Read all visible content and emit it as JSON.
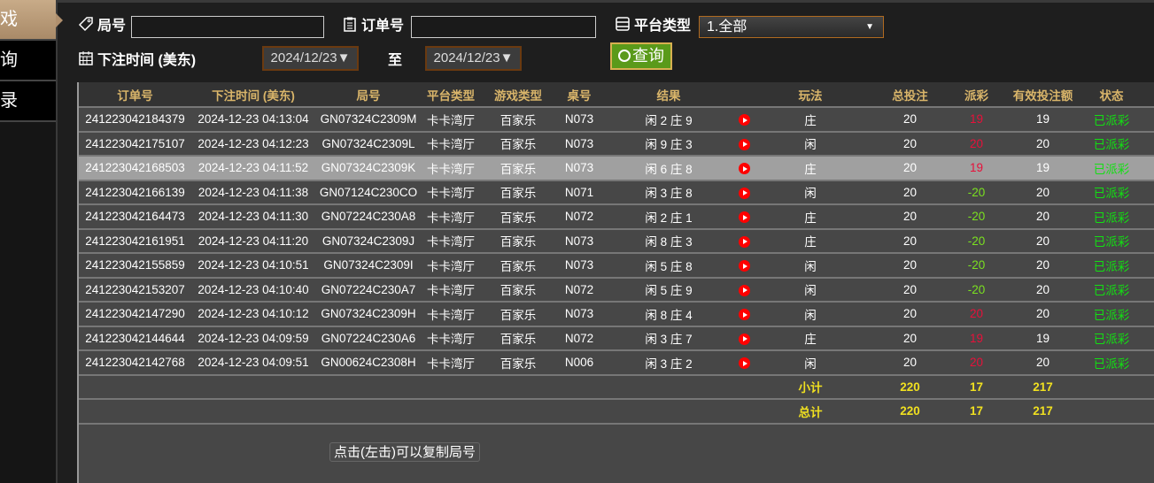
{
  "sidebar": {
    "items": [
      {
        "label": "戏",
        "active": true
      },
      {
        "label": "询"
      },
      {
        "label": "录"
      }
    ]
  },
  "filters": {
    "round_label": "局号",
    "round_value": "",
    "order_label": "订单号",
    "order_value": "",
    "platform_label": "平台类型",
    "platform_value": "1.全部",
    "time_label": "下注时间 (美东)",
    "date_from": "2024/12/23",
    "to_label": "至",
    "date_to": "2024/12/23",
    "query_label": "查询"
  },
  "tooltip": "点击(左击)可以复制局号",
  "table": {
    "headers": [
      "订单号",
      "下注时间 (美东)",
      "局号",
      "平台类型",
      "游戏类型",
      "桌号",
      "结果",
      "",
      "玩法",
      "总投注",
      "派彩",
      "有效投注额",
      "状态"
    ],
    "rows": [
      [
        "241223042184379",
        "2024-12-23 04:13:04",
        "GN07324C2309M",
        "卡卡湾厅",
        "百家乐",
        "N073",
        "闲 2 庄 9",
        "庄",
        "20",
        "19",
        "19",
        "已派彩"
      ],
      [
        "241223042175107",
        "2024-12-23 04:12:23",
        "GN07324C2309L",
        "卡卡湾厅",
        "百家乐",
        "N073",
        "闲 9 庄 3",
        "闲",
        "20",
        "20",
        "20",
        "已派彩"
      ],
      [
        "241223042168503",
        "2024-12-23 04:11:52",
        "GN07324C2309K",
        "卡卡湾厅",
        "百家乐",
        "N073",
        "闲 6 庄 8",
        "庄",
        "20",
        "19",
        "19",
        "已派彩"
      ],
      [
        "241223042166139",
        "2024-12-23 04:11:38",
        "GN07124C230CO",
        "卡卡湾厅",
        "百家乐",
        "N071",
        "闲 3 庄 8",
        "闲",
        "20",
        "-20",
        "20",
        "已派彩"
      ],
      [
        "241223042164473",
        "2024-12-23 04:11:30",
        "GN07224C230A8",
        "卡卡湾厅",
        "百家乐",
        "N072",
        "闲 2 庄 1",
        "庄",
        "20",
        "-20",
        "20",
        "已派彩"
      ],
      [
        "241223042161951",
        "2024-12-23 04:11:20",
        "GN07324C2309J",
        "卡卡湾厅",
        "百家乐",
        "N073",
        "闲 8 庄 3",
        "庄",
        "20",
        "-20",
        "20",
        "已派彩"
      ],
      [
        "241223042155859",
        "2024-12-23 04:10:51",
        "GN07324C2309I",
        "卡卡湾厅",
        "百家乐",
        "N073",
        "闲 5 庄 8",
        "闲",
        "20",
        "-20",
        "20",
        "已派彩"
      ],
      [
        "241223042153207",
        "2024-12-23 04:10:40",
        "GN07224C230A7",
        "卡卡湾厅",
        "百家乐",
        "N072",
        "闲 5 庄 9",
        "闲",
        "20",
        "-20",
        "20",
        "已派彩"
      ],
      [
        "241223042147290",
        "2024-12-23 04:10:12",
        "GN07324C2309H",
        "卡卡湾厅",
        "百家乐",
        "N073",
        "闲 8 庄 4",
        "闲",
        "20",
        "20",
        "20",
        "已派彩"
      ],
      [
        "241223042144644",
        "2024-12-23 04:09:59",
        "GN07224C230A6",
        "卡卡湾厅",
        "百家乐",
        "N072",
        "闲 3 庄 7",
        "庄",
        "20",
        "19",
        "19",
        "已派彩"
      ],
      [
        "241223042142768",
        "2024-12-23 04:09:51",
        "GN00624C2308H",
        "卡卡湾厅",
        "百家乐",
        "N006",
        "闲 3 庄 2",
        "闲",
        "20",
        "20",
        "20",
        "已派彩"
      ]
    ],
    "highlighted_row": 2,
    "subtotal": {
      "label": "小计",
      "total": "220",
      "payout": "17",
      "valid": "217"
    },
    "grandtotal": {
      "label": "总计",
      "total": "220",
      "payout": "17",
      "valid": "217"
    }
  },
  "colors": {
    "payout_positive": "#e8103a",
    "payout_negative": "#7ae020",
    "status": "#12e012",
    "header": "#d9b56a",
    "sum": "#f0e020"
  }
}
